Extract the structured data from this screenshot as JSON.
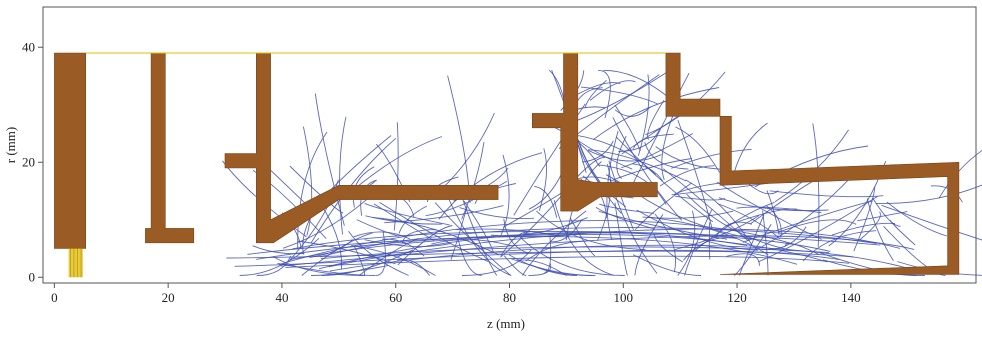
{
  "figure": {
    "xlabel": "z (mm)",
    "ylabel": "r (mm)",
    "x_ticks": [
      "0",
      "20",
      "40",
      "60",
      "80",
      "100",
      "120",
      "140"
    ],
    "y_ticks": [
      "0",
      "20",
      "40"
    ],
    "xlim": [
      -2,
      162
    ],
    "ylim": [
      -1,
      47
    ]
  },
  "colors": {
    "electrode": "#9a5b25",
    "electrode_edge": "#7a4415",
    "trajectory": "#3f4fb0",
    "beam_line": "#d8c200",
    "emitter": "#e3c21a",
    "frame": "#555555"
  },
  "chart_data": {
    "type": "scatter",
    "xlabel": "z (mm)",
    "ylabel": "r (mm)",
    "xlim": [
      -2,
      162
    ],
    "ylim": [
      -1,
      47
    ],
    "grid": false,
    "electrodes": [
      [
        [
          0,
          39
        ],
        [
          5.5,
          39
        ],
        [
          5.5,
          5
        ],
        [
          0,
          5
        ]
      ],
      [
        [
          17,
          39
        ],
        [
          19.5,
          39
        ],
        [
          19.5,
          8.5
        ],
        [
          24.5,
          8.5
        ],
        [
          24.5,
          6
        ],
        [
          16,
          6
        ],
        [
          16,
          8.5
        ],
        [
          17,
          8.5
        ]
      ],
      [
        [
          35.5,
          39
        ],
        [
          38,
          39
        ],
        [
          38,
          28
        ],
        [
          38,
          20
        ],
        [
          38,
          10
        ],
        [
          50,
          16
        ],
        [
          78,
          16
        ],
        [
          78,
          13.5
        ],
        [
          50,
          13.5
        ],
        [
          38.5,
          6
        ],
        [
          35.5,
          6
        ],
        [
          35.5,
          19
        ],
        [
          30,
          19
        ],
        [
          30,
          21.5
        ],
        [
          35.5,
          21.5
        ]
      ],
      [
        [
          89.5,
          39
        ],
        [
          92,
          39
        ],
        [
          92,
          17
        ],
        [
          95,
          16.5
        ],
        [
          106,
          16.5
        ],
        [
          106,
          14
        ],
        [
          96,
          14
        ],
        [
          92,
          11.5
        ],
        [
          89,
          11.5
        ],
        [
          89,
          26
        ],
        [
          84,
          26
        ],
        [
          84,
          28.5
        ],
        [
          89.5,
          28.5
        ]
      ],
      [
        [
          107.5,
          39
        ],
        [
          110,
          39
        ],
        [
          110,
          31
        ],
        [
          117,
          31
        ],
        [
          117,
          28
        ],
        [
          119,
          28
        ],
        [
          119,
          18.5
        ],
        [
          159,
          20
        ],
        [
          159,
          0.5
        ],
        [
          117,
          0.5
        ],
        [
          157,
          2
        ],
        [
          157,
          17.5
        ],
        [
          117,
          16
        ],
        [
          117,
          28
        ],
        [
          107.5,
          28
        ]
      ]
    ],
    "beam_line_r": 39,
    "emitter_z": [
      2.5,
      5
    ],
    "trajectory_count": 220
  }
}
